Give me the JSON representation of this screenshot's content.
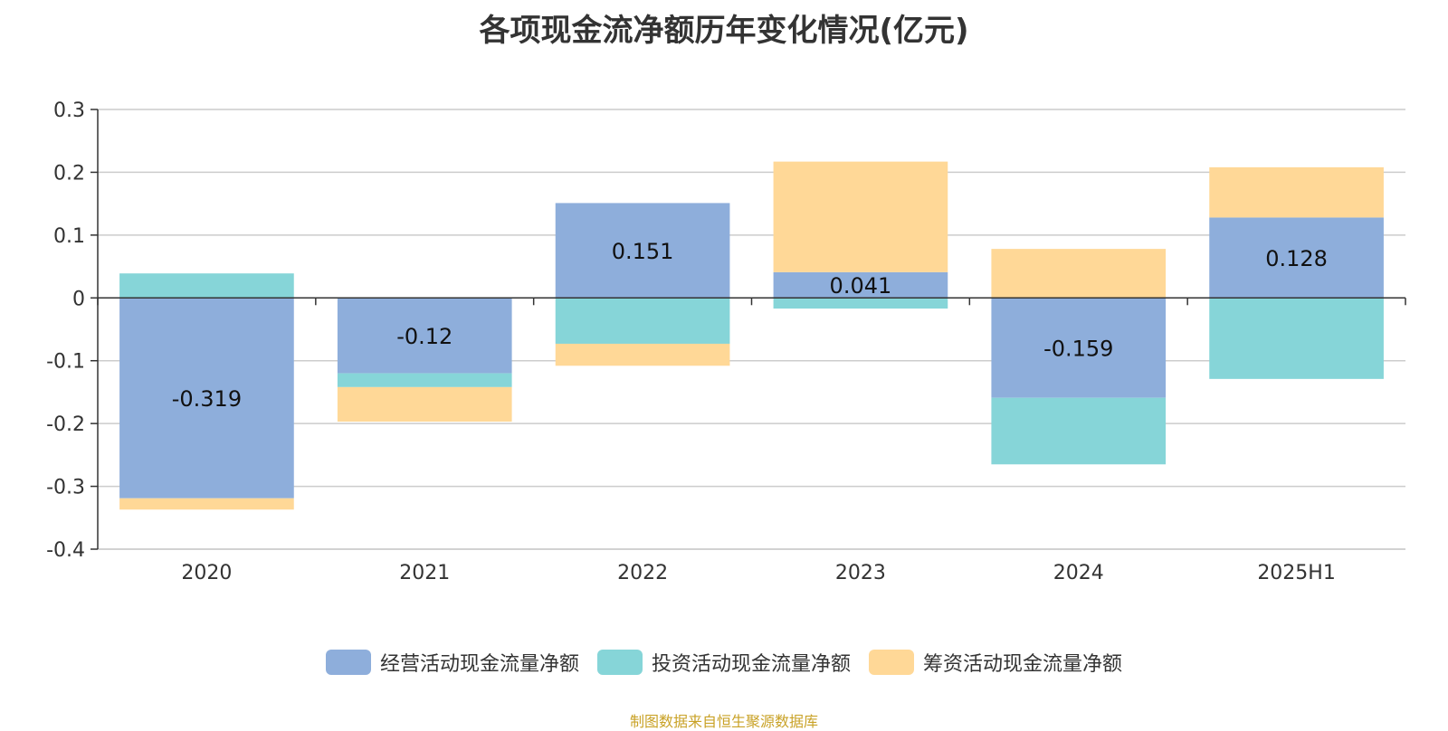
{
  "chart_data": {
    "type": "bar",
    "stacked": true,
    "title": "各项现金流净额历年变化情况(亿元)",
    "categories": [
      "2020",
      "2021",
      "2022",
      "2023",
      "2024",
      "2025H1"
    ],
    "ylim": [
      -0.4,
      0.3
    ],
    "yticks": [
      0.3,
      0.2,
      0.1,
      0,
      -0.1,
      -0.2,
      -0.3,
      -0.4
    ],
    "ytick_labels": [
      "0.3",
      "0.2",
      "0.1",
      "0",
      "-0.1",
      "-0.2",
      "-0.3",
      "-0.4"
    ],
    "grid": true,
    "legend_position": "bottom",
    "series": [
      {
        "name": "经营活动现金流量净额",
        "color": "#8eaedb",
        "values": [
          -0.319,
          -0.12,
          0.151,
          0.041,
          -0.159,
          0.128
        ],
        "labels": [
          "-0.319",
          "-0.12",
          "0.151",
          "0.041",
          "-0.159",
          "0.128"
        ]
      },
      {
        "name": "投资活动现金流量净额",
        "color": "#86d5d8",
        "values": [
          0.039,
          -0.022,
          -0.073,
          -0.017,
          -0.106,
          -0.129
        ]
      },
      {
        "name": "筹资活动现金流量净额",
        "color": "#ffd897",
        "values": [
          -0.018,
          -0.055,
          -0.035,
          0.176,
          0.078,
          0.08
        ]
      }
    ]
  },
  "source": "制图数据来自恒生聚源数据库"
}
